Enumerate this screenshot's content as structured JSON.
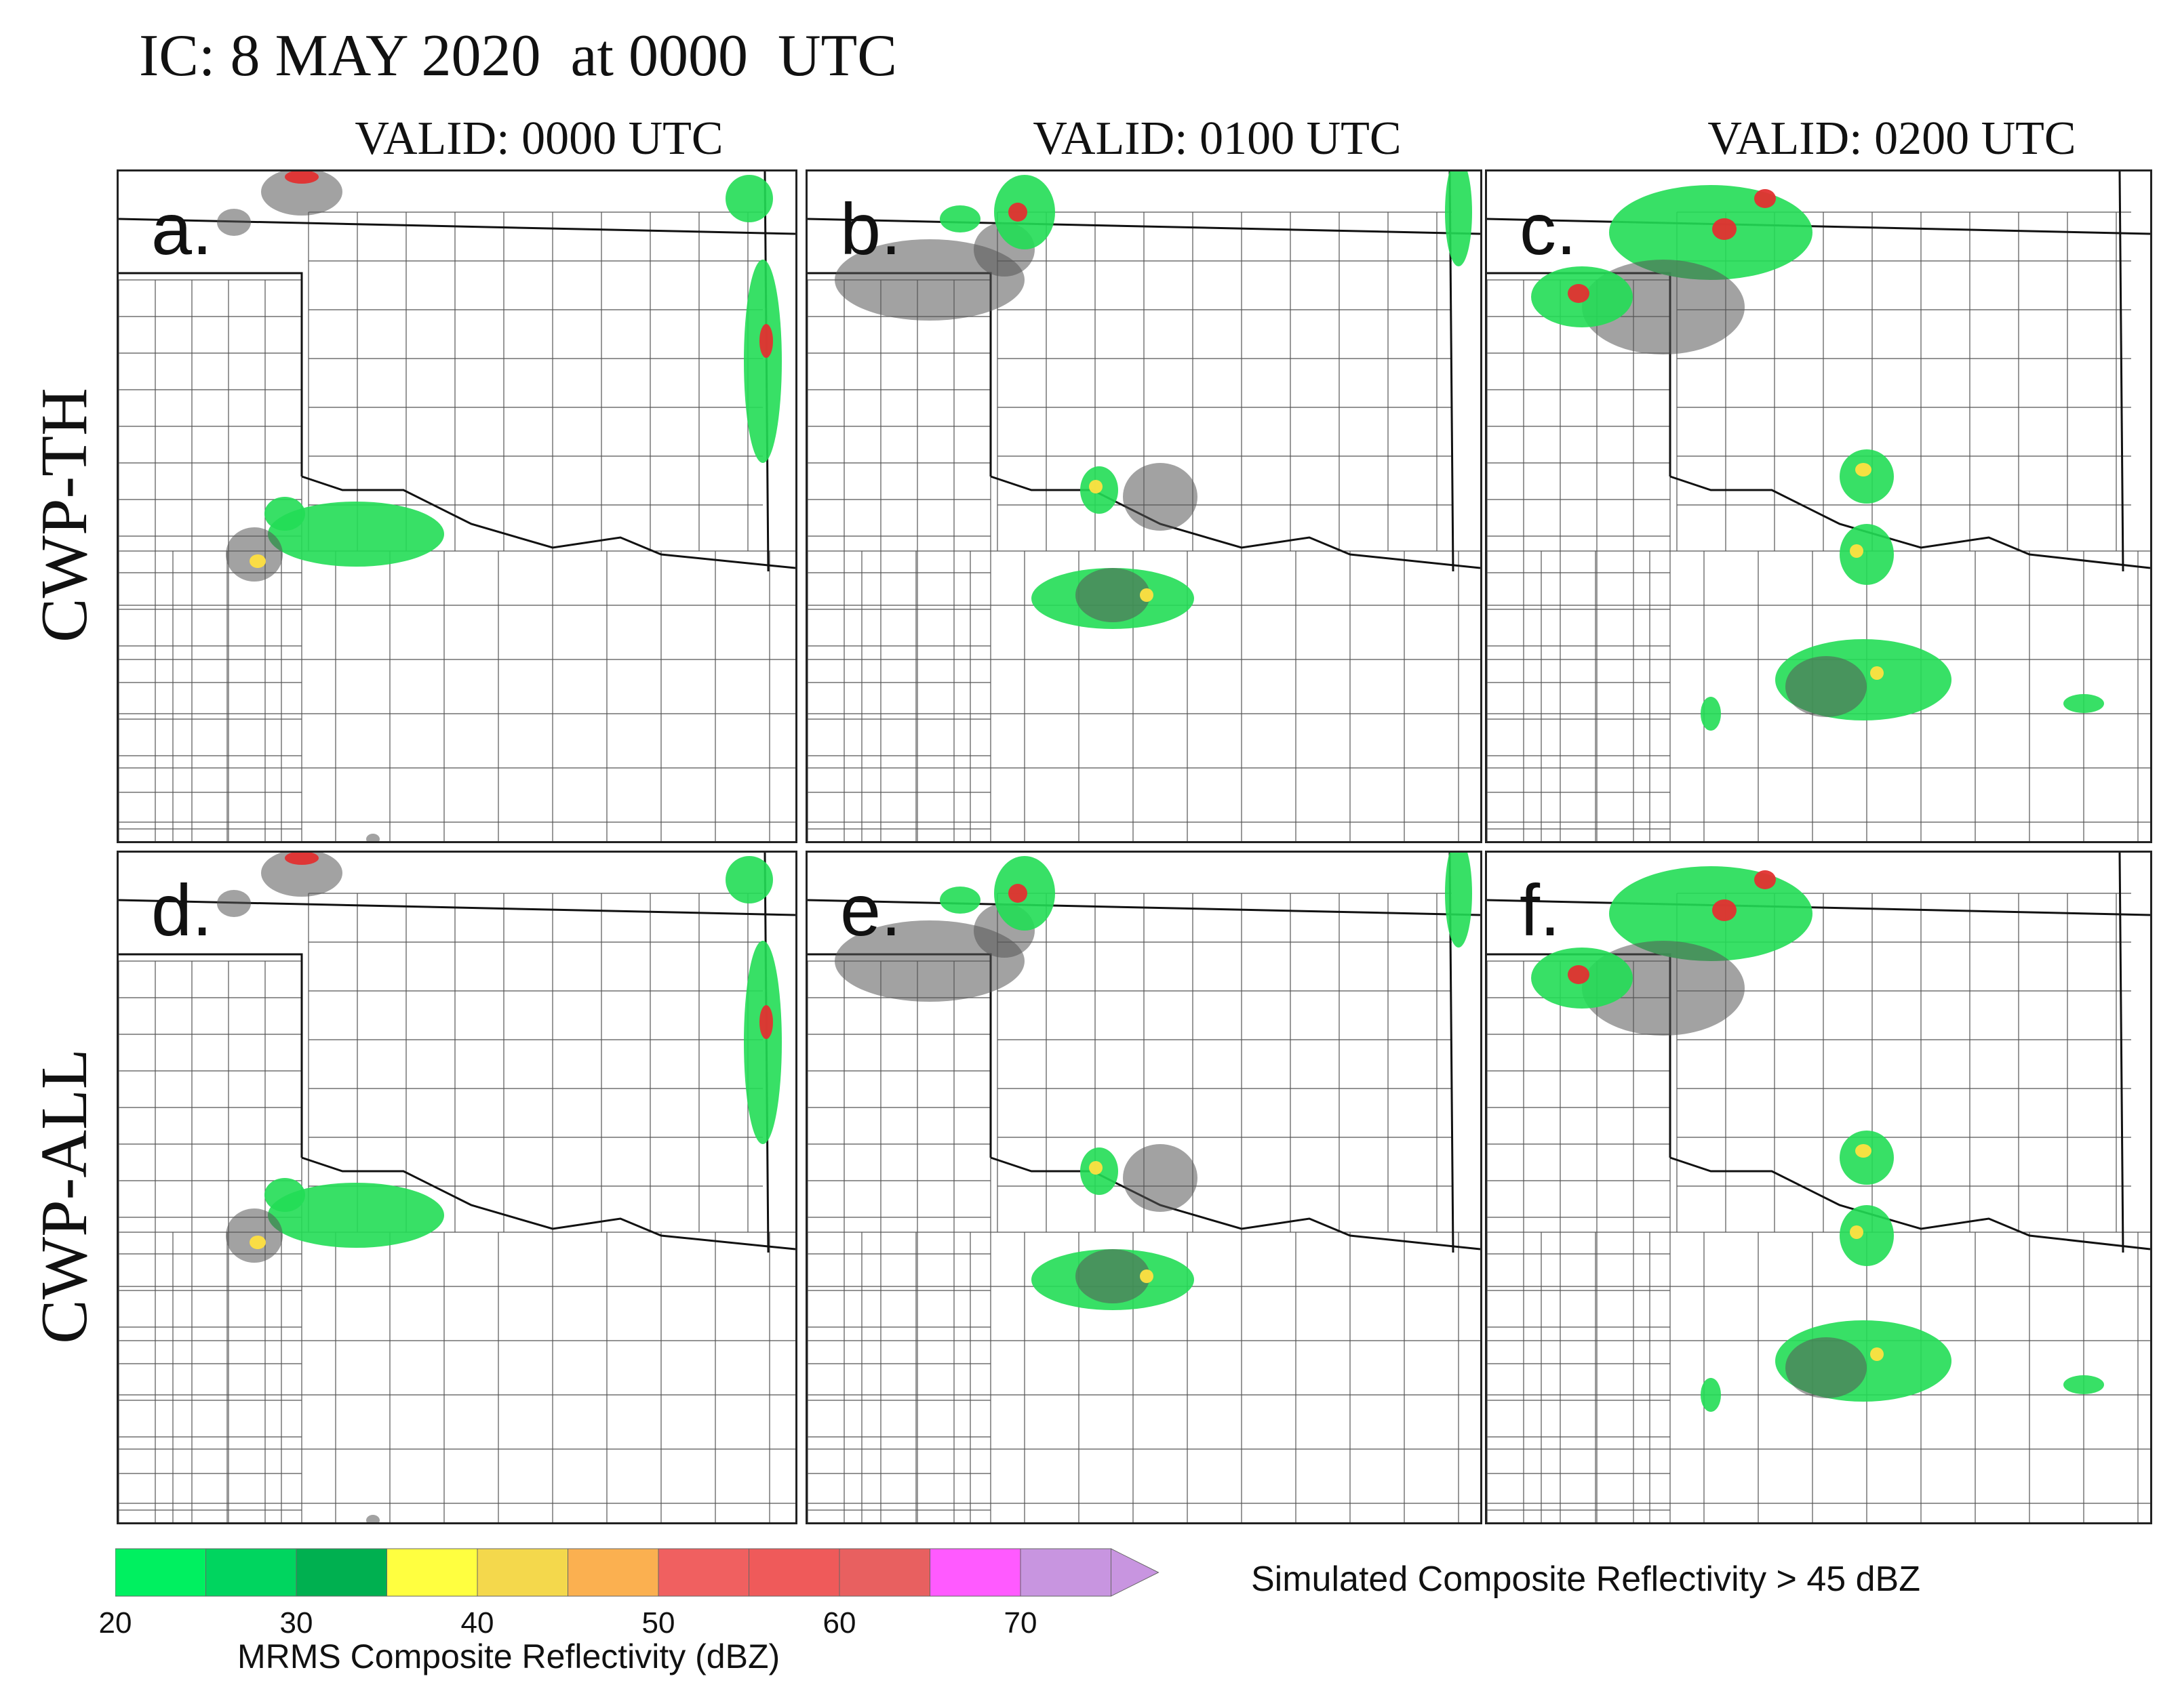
{
  "title": "IC: 8 MAY 2020  at 0000  UTC",
  "columns": [
    "VALID: 0000 UTC",
    "VALID: 0100 UTC",
    "VALID: 0200 UTC"
  ],
  "rows": [
    "CWP-TH",
    "CWP-ALL"
  ],
  "panels": [
    "a.",
    "b.",
    "c.",
    "d.",
    "e.",
    "f."
  ],
  "colorbar": {
    "label": "MRMS Composite Reflectivity (dBZ)",
    "ticks": [
      "20",
      "30",
      "40",
      "50",
      "60",
      "70"
    ],
    "colors": [
      "#00f060",
      "#00d55f",
      "#00b050",
      "#ffff40",
      "#f4d84c",
      "#fbb050",
      "#f06060",
      "#ef5a5a",
      "#e86060",
      "#ff5aff",
      "#c895e0"
    ]
  },
  "overlay_label": "Simulated Composite Reflectivity > 45 dBZ"
}
